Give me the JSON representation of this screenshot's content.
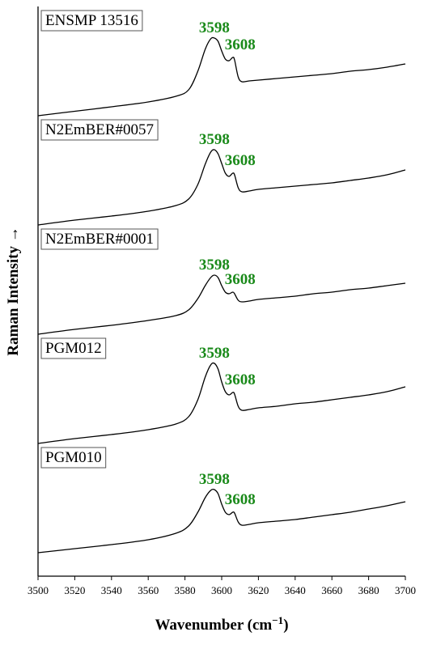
{
  "chart_data": {
    "type": "line",
    "title": "",
    "xlabel": "Wavenumber (cm⁻¹)",
    "ylabel": "Raman Intensity →",
    "xlim": [
      3500,
      3700
    ],
    "x_ticks": [
      3500,
      3520,
      3540,
      3560,
      3580,
      3600,
      3620,
      3640,
      3660,
      3680,
      3700
    ],
    "y_ticks_shown": false,
    "grid": false,
    "legend": "none",
    "stacked_offset": true,
    "peak_color": "#1a8a1a",
    "line_color": "#000000",
    "series": [
      {
        "name": "ENSMP 13516",
        "peak_labels": [
          "3598",
          "3608"
        ],
        "points": [
          [
            3500,
            0.0
          ],
          [
            3520,
            0.055
          ],
          [
            3540,
            0.11
          ],
          [
            3560,
            0.17
          ],
          [
            3575,
            0.24
          ],
          [
            3582,
            0.32
          ],
          [
            3587,
            0.55
          ],
          [
            3591,
            0.82
          ],
          [
            3594,
            0.95
          ],
          [
            3596,
            0.96
          ],
          [
            3598,
            0.92
          ],
          [
            3600,
            0.8
          ],
          [
            3602,
            0.7
          ],
          [
            3604,
            0.68
          ],
          [
            3606,
            0.72
          ],
          [
            3607,
            0.69
          ],
          [
            3609,
            0.48
          ],
          [
            3611,
            0.42
          ],
          [
            3615,
            0.43
          ],
          [
            3620,
            0.44
          ],
          [
            3630,
            0.46
          ],
          [
            3640,
            0.48
          ],
          [
            3650,
            0.5
          ],
          [
            3660,
            0.52
          ],
          [
            3670,
            0.55
          ],
          [
            3680,
            0.57
          ],
          [
            3690,
            0.6
          ],
          [
            3700,
            0.64
          ]
        ]
      },
      {
        "name": "N2EmBER#0057",
        "peak_labels": [
          "3598",
          "3608"
        ],
        "points": [
          [
            3500,
            0.0
          ],
          [
            3520,
            0.06
          ],
          [
            3540,
            0.11
          ],
          [
            3560,
            0.17
          ],
          [
            3575,
            0.24
          ],
          [
            3582,
            0.32
          ],
          [
            3587,
            0.5
          ],
          [
            3591,
            0.75
          ],
          [
            3594,
            0.9
          ],
          [
            3596,
            0.93
          ],
          [
            3598,
            0.88
          ],
          [
            3600,
            0.76
          ],
          [
            3602,
            0.64
          ],
          [
            3604,
            0.6
          ],
          [
            3606,
            0.64
          ],
          [
            3607,
            0.62
          ],
          [
            3609,
            0.46
          ],
          [
            3611,
            0.41
          ],
          [
            3615,
            0.42
          ],
          [
            3620,
            0.44
          ],
          [
            3630,
            0.46
          ],
          [
            3640,
            0.48
          ],
          [
            3650,
            0.5
          ],
          [
            3660,
            0.52
          ],
          [
            3670,
            0.55
          ],
          [
            3680,
            0.58
          ],
          [
            3690,
            0.62
          ],
          [
            3700,
            0.68
          ]
        ]
      },
      {
        "name": "N2EmBER#0001",
        "peak_labels": [
          "3598",
          "3608"
        ],
        "points": [
          [
            3500,
            0.0
          ],
          [
            3520,
            0.06
          ],
          [
            3540,
            0.11
          ],
          [
            3560,
            0.17
          ],
          [
            3575,
            0.23
          ],
          [
            3582,
            0.3
          ],
          [
            3587,
            0.44
          ],
          [
            3591,
            0.6
          ],
          [
            3594,
            0.7
          ],
          [
            3596,
            0.73
          ],
          [
            3598,
            0.7
          ],
          [
            3600,
            0.6
          ],
          [
            3602,
            0.52
          ],
          [
            3604,
            0.5
          ],
          [
            3606,
            0.52
          ],
          [
            3607,
            0.5
          ],
          [
            3609,
            0.42
          ],
          [
            3611,
            0.4
          ],
          [
            3615,
            0.41
          ],
          [
            3620,
            0.43
          ],
          [
            3630,
            0.45
          ],
          [
            3640,
            0.47
          ],
          [
            3650,
            0.5
          ],
          [
            3660,
            0.52
          ],
          [
            3670,
            0.55
          ],
          [
            3680,
            0.57
          ],
          [
            3690,
            0.6
          ],
          [
            3700,
            0.63
          ]
        ]
      },
      {
        "name": "PGM012",
        "peak_labels": [
          "3598",
          "3608"
        ],
        "points": [
          [
            3500,
            0.0
          ],
          [
            3520,
            0.06
          ],
          [
            3540,
            0.11
          ],
          [
            3560,
            0.17
          ],
          [
            3575,
            0.24
          ],
          [
            3582,
            0.33
          ],
          [
            3587,
            0.54
          ],
          [
            3591,
            0.82
          ],
          [
            3594,
            0.97
          ],
          [
            3596,
            0.99
          ],
          [
            3598,
            0.92
          ],
          [
            3600,
            0.76
          ],
          [
            3602,
            0.64
          ],
          [
            3604,
            0.6
          ],
          [
            3606,
            0.63
          ],
          [
            3607,
            0.61
          ],
          [
            3609,
            0.46
          ],
          [
            3611,
            0.41
          ],
          [
            3615,
            0.42
          ],
          [
            3620,
            0.44
          ],
          [
            3630,
            0.46
          ],
          [
            3640,
            0.49
          ],
          [
            3650,
            0.51
          ],
          [
            3660,
            0.54
          ],
          [
            3670,
            0.57
          ],
          [
            3680,
            0.6
          ],
          [
            3690,
            0.64
          ],
          [
            3700,
            0.7
          ]
        ]
      },
      {
        "name": "PGM010",
        "peak_labels": [
          "3598",
          "3608"
        ],
        "points": [
          [
            3500,
            0.0
          ],
          [
            3520,
            0.05
          ],
          [
            3540,
            0.1
          ],
          [
            3560,
            0.16
          ],
          [
            3575,
            0.24
          ],
          [
            3582,
            0.33
          ],
          [
            3587,
            0.5
          ],
          [
            3591,
            0.68
          ],
          [
            3594,
            0.77
          ],
          [
            3596,
            0.78
          ],
          [
            3598,
            0.73
          ],
          [
            3600,
            0.6
          ],
          [
            3602,
            0.5
          ],
          [
            3604,
            0.47
          ],
          [
            3606,
            0.5
          ],
          [
            3607,
            0.49
          ],
          [
            3609,
            0.38
          ],
          [
            3611,
            0.34
          ],
          [
            3615,
            0.35
          ],
          [
            3620,
            0.37
          ],
          [
            3630,
            0.39
          ],
          [
            3640,
            0.41
          ],
          [
            3650,
            0.44
          ],
          [
            3660,
            0.47
          ],
          [
            3670,
            0.5
          ],
          [
            3680,
            0.54
          ],
          [
            3690,
            0.58
          ],
          [
            3700,
            0.63
          ]
        ]
      }
    ]
  }
}
